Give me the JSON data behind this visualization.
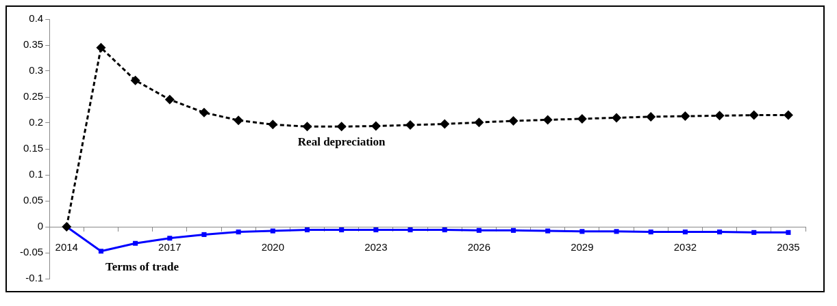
{
  "chart_data": {
    "type": "line",
    "categories": [
      "2014",
      null,
      null,
      "2017",
      null,
      null,
      "2020",
      null,
      null,
      "2023",
      null,
      null,
      "2026",
      null,
      null,
      "2029",
      null,
      null,
      "2032",
      null,
      null,
      "2035"
    ],
    "series": [
      {
        "name": "Real depreciation",
        "color": "#000000",
        "marker": "diamond",
        "line_style": "dashed",
        "values": [
          0,
          0.345,
          0.282,
          0.245,
          0.22,
          0.205,
          0.197,
          0.193,
          0.193,
          0.194,
          0.196,
          0.198,
          0.201,
          0.204,
          0.206,
          0.208,
          0.21,
          0.212,
          0.213,
          0.214,
          0.215,
          0.215
        ]
      },
      {
        "name": "Terms of trade",
        "color": "#0000ff",
        "marker": "square",
        "line_style": "solid",
        "values": [
          0,
          -0.047,
          -0.032,
          -0.022,
          -0.015,
          -0.01,
          -0.008,
          -0.006,
          -0.006,
          -0.006,
          -0.006,
          -0.006,
          -0.007,
          -0.007,
          -0.008,
          -0.009,
          -0.009,
          -0.01,
          -0.01,
          -0.01,
          -0.011,
          -0.011
        ]
      }
    ],
    "ylim": [
      -0.1,
      0.4
    ],
    "yticks": [
      -0.1,
      -0.05,
      0,
      0.05,
      0.1,
      0.15,
      0.2,
      0.25,
      0.3,
      0.35,
      0.4
    ],
    "grid": false,
    "legend": false
  }
}
